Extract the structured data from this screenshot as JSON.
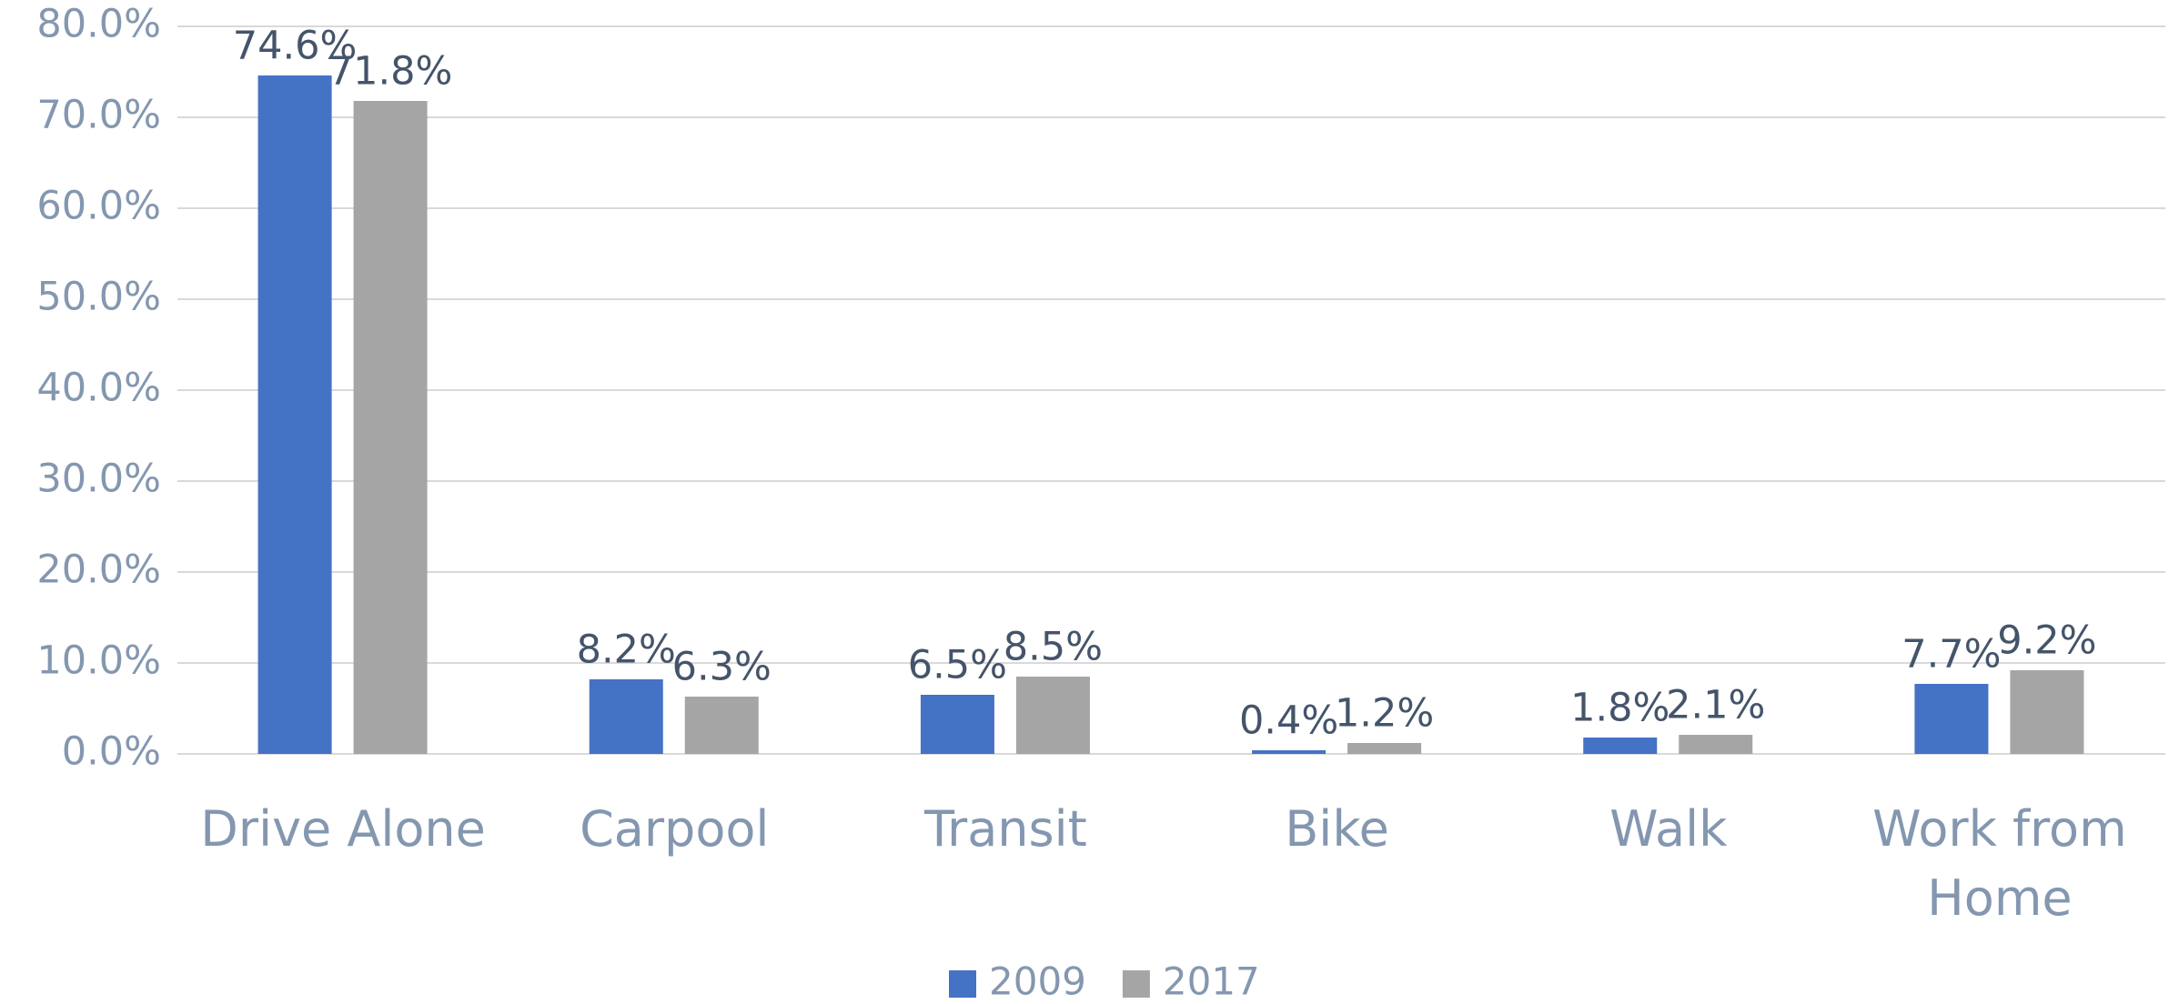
{
  "chart_data": {
    "type": "bar",
    "categories": [
      "Drive Alone",
      "Carpool",
      "Transit",
      "Bike",
      "Walk",
      "Work from Home"
    ],
    "series": [
      {
        "name": "2009",
        "color": "#4472c4",
        "values": [
          74.6,
          8.2,
          6.5,
          0.4,
          1.8,
          7.7
        ],
        "value_labels": [
          "74.6%",
          "8.2%",
          "6.5%",
          "0.4%",
          "1.8%",
          "7.7%"
        ]
      },
      {
        "name": "2017",
        "color": "#a5a5a5",
        "values": [
          71.8,
          6.3,
          8.5,
          1.2,
          2.1,
          9.2
        ],
        "value_labels": [
          "71.8%",
          "6.3%",
          "8.5%",
          "1.2%",
          "2.1%",
          "9.2%"
        ]
      }
    ],
    "ylim": [
      0,
      80
    ],
    "yticks": [
      {
        "value": 0,
        "label": "0.0%"
      },
      {
        "value": 10,
        "label": "10.0%"
      },
      {
        "value": 20,
        "label": "20.0%"
      },
      {
        "value": 30,
        "label": "30.0%"
      },
      {
        "value": 40,
        "label": "40.0%"
      },
      {
        "value": 50,
        "label": "50.0%"
      },
      {
        "value": 60,
        "label": "60.0%"
      },
      {
        "value": 70,
        "label": "70.0%"
      },
      {
        "value": 80,
        "label": "80.0%"
      }
    ],
    "grid": true,
    "legend": "bottom"
  }
}
